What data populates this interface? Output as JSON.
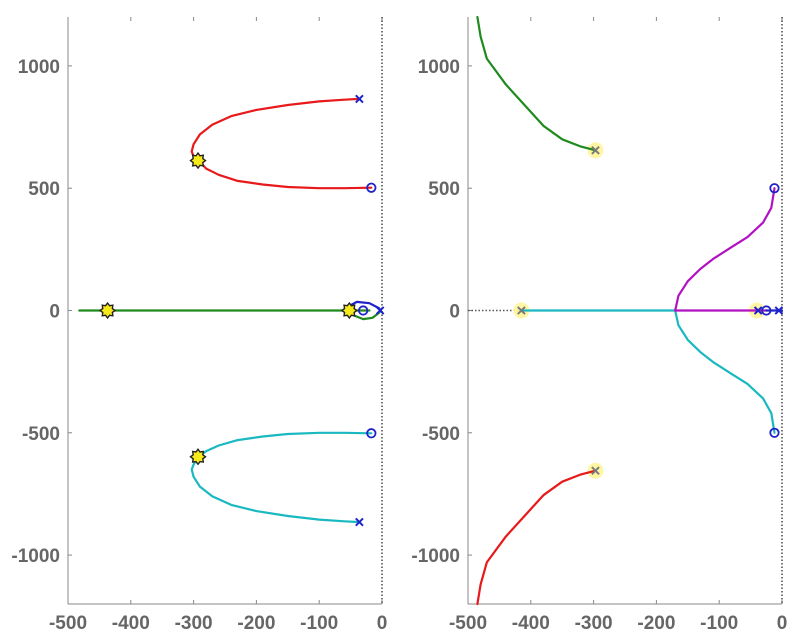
{
  "chart_data": [
    {
      "type": "line",
      "title": "",
      "xlabel": "",
      "ylabel": "",
      "xlim": [
        -500,
        0
      ],
      "ylim": [
        -1200,
        1200
      ],
      "xticks": [
        -500,
        -400,
        -300,
        -200,
        -100,
        0
      ],
      "xtick_labels": [
        "-500",
        "-400",
        "-300",
        "-200",
        "-100",
        "0"
      ],
      "yticks": [
        -1000,
        -500,
        0,
        500,
        1000
      ],
      "ytick_labels": [
        "-1000",
        "-500",
        "0",
        "500",
        "1000"
      ],
      "grid": false,
      "reference_lines": [
        {
          "axis": "x",
          "value": 0,
          "style": "dotted",
          "color": "#555555"
        }
      ],
      "series": [
        {
          "color": "#e8191b",
          "points": [
            [
              -36,
              865
            ],
            [
              -60,
              862
            ],
            [
              -100,
              855
            ],
            [
              -150,
              840
            ],
            [
              -200,
              820
            ],
            [
              -240,
              795
            ],
            [
              -270,
              760
            ],
            [
              -290,
              720
            ],
            [
              -300,
              680
            ],
            [
              -303,
              650
            ],
            [
              -300,
              630
            ],
            [
              -293,
              615
            ],
            [
              -280,
              580
            ],
            [
              -260,
              555
            ],
            [
              -230,
              530
            ],
            [
              -190,
              515
            ],
            [
              -150,
              505
            ],
            [
              -100,
              500
            ],
            [
              -60,
              500
            ],
            [
              -17,
              502
            ]
          ]
        },
        {
          "color": "#1ab8c0",
          "points": [
            [
              -36,
              -865
            ],
            [
              -60,
              -862
            ],
            [
              -100,
              -855
            ],
            [
              -150,
              -840
            ],
            [
              -200,
              -820
            ],
            [
              -240,
              -795
            ],
            [
              -270,
              -760
            ],
            [
              -290,
              -720
            ],
            [
              -300,
              -680
            ],
            [
              -303,
              -650
            ],
            [
              -300,
              -630
            ],
            [
              -293,
              -600
            ],
            [
              -280,
              -575
            ],
            [
              -260,
              -552
            ],
            [
              -230,
              -530
            ],
            [
              -190,
              -515
            ],
            [
              -150,
              -505
            ],
            [
              -100,
              -500
            ],
            [
              -60,
              -500
            ],
            [
              -17,
              -502
            ]
          ]
        },
        {
          "color": "#1f8a1e",
          "points": [
            [
              -482,
              0
            ],
            [
              -20,
              0
            ]
          ]
        },
        {
          "color": "#1f8a1e",
          "points": [
            [
              -50,
              0
            ],
            [
              -45,
              -20
            ],
            [
              -30,
              -35
            ],
            [
              -15,
              -30
            ],
            [
              -5,
              -10
            ],
            [
              -2,
              0
            ]
          ]
        },
        {
          "color": "#1d22c9",
          "points": [
            [
              -50,
              0
            ],
            [
              -55,
              15
            ],
            [
              -40,
              35
            ],
            [
              -20,
              30
            ],
            [
              -5,
              10
            ],
            [
              -2,
              0
            ]
          ]
        }
      ],
      "poles": [
        [
          -36,
          865
        ],
        [
          -36,
          -865
        ],
        [
          -3,
          0
        ]
      ],
      "zeros": [
        [
          -17,
          502
        ],
        [
          -17,
          -502
        ],
        [
          -30,
          0
        ]
      ],
      "marked_points": [
        [
          -293,
          613
        ],
        [
          -293,
          -598
        ],
        [
          -437,
          0
        ],
        [
          -52,
          0
        ]
      ]
    },
    {
      "type": "line",
      "title": "",
      "xlabel": "",
      "ylabel": "",
      "xlim": [
        -500,
        0
      ],
      "ylim": [
        -1200,
        1200
      ],
      "xticks": [
        -500,
        -400,
        -300,
        -200,
        -100,
        0
      ],
      "xtick_labels": [
        "-500",
        "-400",
        "-300",
        "-200",
        "-100",
        "0"
      ],
      "yticks": [
        -1000,
        -500,
        0,
        500,
        1000
      ],
      "ytick_labels": [
        "-1000",
        "-500",
        "0",
        "500",
        "1000"
      ],
      "grid": false,
      "reference_lines": [
        {
          "axis": "x",
          "value": 0,
          "style": "dotted",
          "color": "#555555"
        },
        {
          "axis": "y",
          "value": 0,
          "x_range": [
            -500,
            -420
          ],
          "style": "dotted",
          "color": "#555555"
        }
      ],
      "series": [
        {
          "color": "#1f8a1e",
          "points": [
            [
              -297,
              655
            ],
            [
              -320,
              670
            ],
            [
              -350,
              700
            ],
            [
              -380,
              755
            ],
            [
              -410,
              840
            ],
            [
              -440,
              925
            ],
            [
              -470,
              1030
            ],
            [
              -480,
              1120
            ],
            [
              -485,
              1200
            ]
          ]
        },
        {
          "color": "#e8191b",
          "points": [
            [
              -297,
              -655
            ],
            [
              -320,
              -670
            ],
            [
              -350,
              -700
            ],
            [
              -380,
              -755
            ],
            [
              -410,
              -840
            ],
            [
              -440,
              -925
            ],
            [
              -470,
              -1030
            ],
            [
              -480,
              -1120
            ],
            [
              -485,
              -1200
            ]
          ]
        },
        {
          "color": "#1ab8c0",
          "points": [
            [
              -415,
              0
            ],
            [
              -170,
              0
            ]
          ]
        },
        {
          "color": "#1ab8c0",
          "points": [
            [
              -170,
              0
            ],
            [
              -165,
              -60
            ],
            [
              -150,
              -120
            ],
            [
              -130,
              -170
            ],
            [
              -110,
              -210
            ],
            [
              -80,
              -260
            ],
            [
              -55,
              -300
            ],
            [
              -30,
              -360
            ],
            [
              -17,
              -420
            ],
            [
              -12,
              -500
            ]
          ]
        },
        {
          "color": "#b012c1",
          "points": [
            [
              -170,
              0
            ],
            [
              -165,
              60
            ],
            [
              -150,
              120
            ],
            [
              -130,
              170
            ],
            [
              -110,
              210
            ],
            [
              -80,
              260
            ],
            [
              -55,
              300
            ],
            [
              -30,
              360
            ],
            [
              -17,
              420
            ],
            [
              -12,
              500
            ]
          ]
        },
        {
          "color": "#b012c1",
          "points": [
            [
              -170,
              0
            ],
            [
              -25,
              0
            ]
          ]
        },
        {
          "color": "#1d22c9",
          "points": [
            [
              -25,
              0
            ],
            [
              0,
              0
            ]
          ]
        }
      ],
      "poles": [
        [
          -297,
          655
        ],
        [
          -297,
          -655
        ],
        [
          -415,
          0
        ],
        [
          -5,
          0
        ],
        [
          -38,
          0
        ]
      ],
      "zeros": [
        [
          -12,
          500
        ],
        [
          -12,
          -500
        ],
        [
          -25,
          0
        ]
      ],
      "marked_points": [
        [
          -297,
          655
        ],
        [
          -297,
          -655
        ],
        [
          -415,
          0
        ],
        [
          -40,
          0
        ]
      ]
    }
  ]
}
